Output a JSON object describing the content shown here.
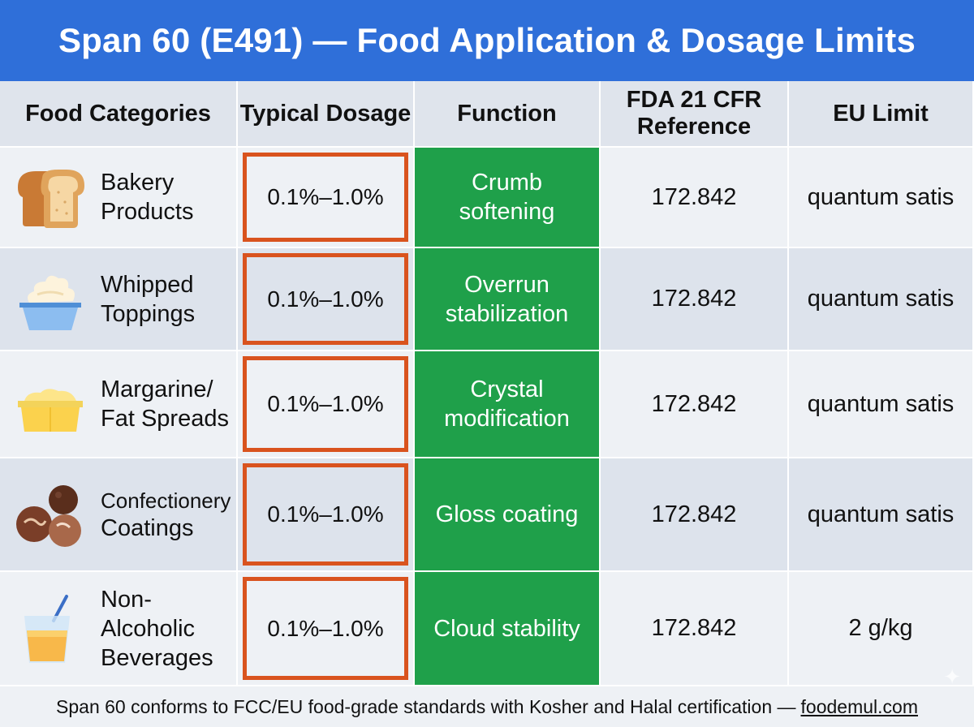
{
  "title": "Span 60 (E491) — Food Application & Dosage Limits",
  "headers": {
    "categories": "Food Categories",
    "dosage": "Typical Dosage",
    "function": "Function",
    "fda_line1": "FDA 21 CFR",
    "fda_line2": "Reference",
    "eu": "EU Limit"
  },
  "rows": [
    {
      "icon": "bread-icon",
      "category_line1": "Bakery",
      "category_line2": "Products",
      "category_line3": "",
      "dosage": "0.1%–1.0%",
      "function_line1": "Crumb",
      "function_line2": "softening",
      "fda": "172.842",
      "eu": "quantum satis"
    },
    {
      "icon": "whipped-topping-icon",
      "category_line1": "Whipped",
      "category_line2": "Toppings",
      "category_line3": "",
      "dosage": "0.1%–1.0%",
      "function_line1": "Overrun",
      "function_line2": "stabilization",
      "fda": "172.842",
      "eu": "quantum satis"
    },
    {
      "icon": "margarine-tub-icon",
      "category_line1": "Margarine/",
      "category_line2": "Fat Spreads",
      "category_line3": "",
      "dosage": "0.1%–1.0%",
      "function_line1": "Crystal",
      "function_line2": "modification",
      "fda": "172.842",
      "eu": "quantum satis"
    },
    {
      "icon": "chocolate-truffles-icon",
      "category_line1": "Confectionery",
      "category_line2": "Coatings",
      "category_line3": "",
      "dosage": "0.1%–1.0%",
      "function_line1": "Gloss coating",
      "function_line2": "",
      "fda": "172.842",
      "eu": "quantum satis"
    },
    {
      "icon": "juice-glass-icon",
      "category_line1": "Non-",
      "category_line2": "Alcoholic",
      "category_line3": "Beverages",
      "dosage": "0.1%–1.0%",
      "function_line1": "Cloud stability",
      "function_line2": "",
      "fda": "172.842",
      "eu": "2 g/kg"
    }
  ],
  "footer": {
    "text": "Span 60 conforms to FCC/EU food-grade standards with Kosher and Halal certification —",
    "link": "foodemul.com"
  },
  "colors": {
    "title_bg": "#2f6fd9",
    "function_bg": "#1fa04a",
    "dosage_border": "#d9531e"
  }
}
